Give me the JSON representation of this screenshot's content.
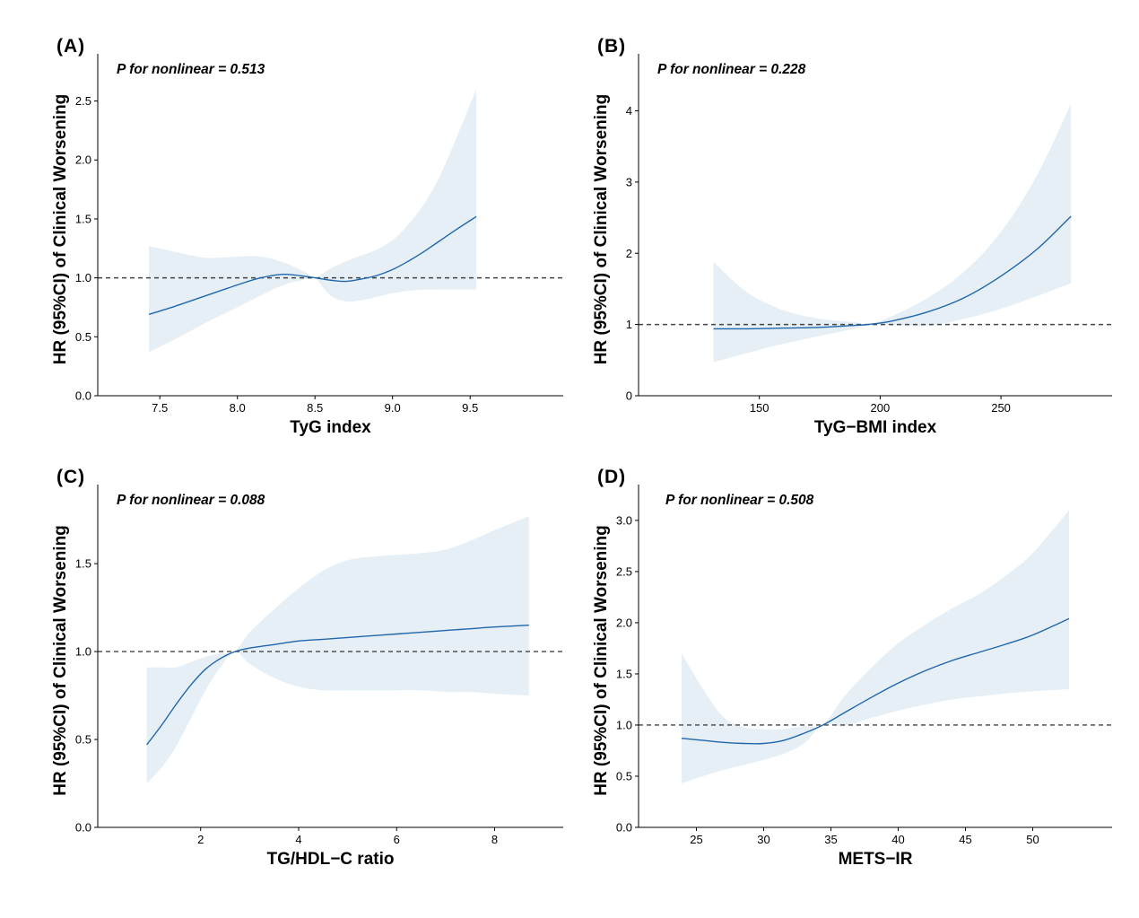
{
  "colors": {
    "line": "#2166ac",
    "band": "#e5eff5",
    "reference": "#444444",
    "axis": "#000000"
  },
  "chart_data": [
    {
      "panel": "(A)",
      "type": "line",
      "annotation": "P for nonlinear = 0.513",
      "xlabel": "TyG index",
      "ylabel": "HR (95%CI) of Clinical Worsening",
      "xlim": [
        7.1,
        10.1
      ],
      "ylim": [
        0,
        2.9
      ],
      "xticks": [
        7.5,
        8.0,
        8.5,
        9.0,
        9.5
      ],
      "yticks": [
        0.0,
        0.5,
        1.0,
        1.5,
        2.0,
        2.5
      ],
      "tick_decimals": {
        "x": 1,
        "y": 1
      },
      "reference_line": 1.0,
      "grid": false,
      "x": [
        7.43,
        7.6,
        7.8,
        8.0,
        8.15,
        8.3,
        8.45,
        8.5,
        8.6,
        8.7,
        8.8,
        8.9,
        9.0,
        9.1,
        9.2,
        9.3,
        9.4,
        9.54
      ],
      "y": [
        0.69,
        0.76,
        0.85,
        0.94,
        1.0,
        1.03,
        1.01,
        1.0,
        0.98,
        0.97,
        0.99,
        1.02,
        1.07,
        1.14,
        1.22,
        1.31,
        1.4,
        1.52
      ],
      "lower": [
        0.37,
        0.48,
        0.62,
        0.75,
        0.85,
        0.94,
        0.99,
        1.0,
        0.85,
        0.8,
        0.81,
        0.84,
        0.87,
        0.89,
        0.9,
        0.9,
        0.9,
        0.9
      ],
      "upper": [
        1.27,
        1.22,
        1.17,
        1.18,
        1.18,
        1.13,
        1.04,
        1.0,
        1.08,
        1.14,
        1.19,
        1.24,
        1.32,
        1.45,
        1.62,
        1.85,
        2.15,
        2.6
      ]
    },
    {
      "panel": "(B)",
      "type": "line",
      "annotation": "P for nonlinear = 0.228",
      "xlabel": "TyG−BMI index",
      "ylabel": "HR (95%CI) of Clinical Worsening",
      "xlim": [
        100,
        296
      ],
      "ylim": [
        0,
        4.8
      ],
      "xticks": [
        150,
        200,
        250
      ],
      "yticks": [
        0,
        1,
        2,
        3,
        4
      ],
      "tick_decimals": {
        "x": 0,
        "y": 0
      },
      "reference_line": 1.0,
      "grid": false,
      "x": [
        131,
        145,
        160,
        175,
        190,
        195,
        205,
        220,
        235,
        250,
        265,
        279
      ],
      "y": [
        0.94,
        0.94,
        0.95,
        0.96,
        0.99,
        1.0,
        1.05,
        1.18,
        1.38,
        1.68,
        2.06,
        2.52
      ],
      "lower": [
        0.47,
        0.6,
        0.73,
        0.84,
        0.95,
        1.0,
        0.99,
        0.98,
        1.08,
        1.22,
        1.4,
        1.58
      ],
      "upper": [
        1.88,
        1.45,
        1.2,
        1.08,
        1.03,
        1.0,
        1.12,
        1.38,
        1.75,
        2.3,
        3.1,
        4.1
      ]
    },
    {
      "panel": "(C)",
      "type": "line",
      "annotation": "P for nonlinear = 0.088",
      "xlabel": "TG/HDL−C ratio",
      "ylabel": "HR (95%CI) of Clinical Worsening",
      "xlim": [
        -0.1,
        9.4
      ],
      "ylim": [
        0,
        1.95
      ],
      "xticks": [
        2,
        4,
        6,
        8
      ],
      "yticks": [
        0.0,
        0.5,
        1.0,
        1.5
      ],
      "tick_decimals": {
        "x": 0,
        "y": 1
      },
      "reference_line": 1.0,
      "grid": false,
      "x": [
        0.9,
        1.2,
        1.5,
        1.8,
        2.1,
        2.4,
        2.7,
        3.0,
        3.5,
        4.0,
        4.5,
        5.0,
        5.5,
        6.0,
        6.5,
        7.0,
        7.5,
        8.0,
        8.7
      ],
      "y": [
        0.47,
        0.58,
        0.7,
        0.81,
        0.9,
        0.96,
        1.0,
        1.02,
        1.04,
        1.06,
        1.07,
        1.08,
        1.09,
        1.1,
        1.11,
        1.12,
        1.13,
        1.14,
        1.15
      ],
      "lower": [
        0.25,
        0.34,
        0.46,
        0.62,
        0.78,
        0.91,
        1.0,
        0.93,
        0.85,
        0.8,
        0.78,
        0.78,
        0.78,
        0.78,
        0.78,
        0.77,
        0.77,
        0.76,
        0.75
      ],
      "upper": [
        0.91,
        0.91,
        0.91,
        0.94,
        0.97,
        0.99,
        1.0,
        1.11,
        1.24,
        1.36,
        1.46,
        1.52,
        1.54,
        1.55,
        1.56,
        1.58,
        1.63,
        1.69,
        1.77
      ]
    },
    {
      "panel": "(D)",
      "type": "line",
      "annotation": "P for nonlinear = 0.508",
      "xlabel": "METS−IR",
      "ylabel": "HR (95%CI) of Clinical Worsening",
      "xlim": [
        20.7,
        55.9
      ],
      "ylim": [
        0,
        3.35
      ],
      "xticks": [
        25,
        30,
        35,
        40,
        45,
        50
      ],
      "yticks": [
        0.0,
        0.5,
        1.0,
        1.5,
        2.0,
        2.5,
        3.0
      ],
      "tick_decimals": {
        "x": 0,
        "y": 1
      },
      "reference_line": 1.0,
      "grid": false,
      "x": [
        23.9,
        25.5,
        27,
        28.5,
        30,
        31.5,
        33,
        34.4,
        36,
        38,
        40,
        42,
        44,
        46,
        48,
        50,
        52.7
      ],
      "y": [
        0.87,
        0.85,
        0.83,
        0.82,
        0.82,
        0.85,
        0.92,
        1.0,
        1.12,
        1.27,
        1.41,
        1.53,
        1.63,
        1.71,
        1.79,
        1.88,
        2.04
      ],
      "lower": [
        0.43,
        0.5,
        0.56,
        0.61,
        0.66,
        0.72,
        0.82,
        1.0,
        0.99,
        1.07,
        1.14,
        1.2,
        1.25,
        1.28,
        1.31,
        1.33,
        1.35
      ],
      "upper": [
        1.7,
        1.35,
        1.08,
        0.98,
        0.96,
        0.96,
        0.99,
        1.0,
        1.28,
        1.56,
        1.8,
        1.98,
        2.14,
        2.28,
        2.46,
        2.68,
        3.1
      ]
    }
  ]
}
